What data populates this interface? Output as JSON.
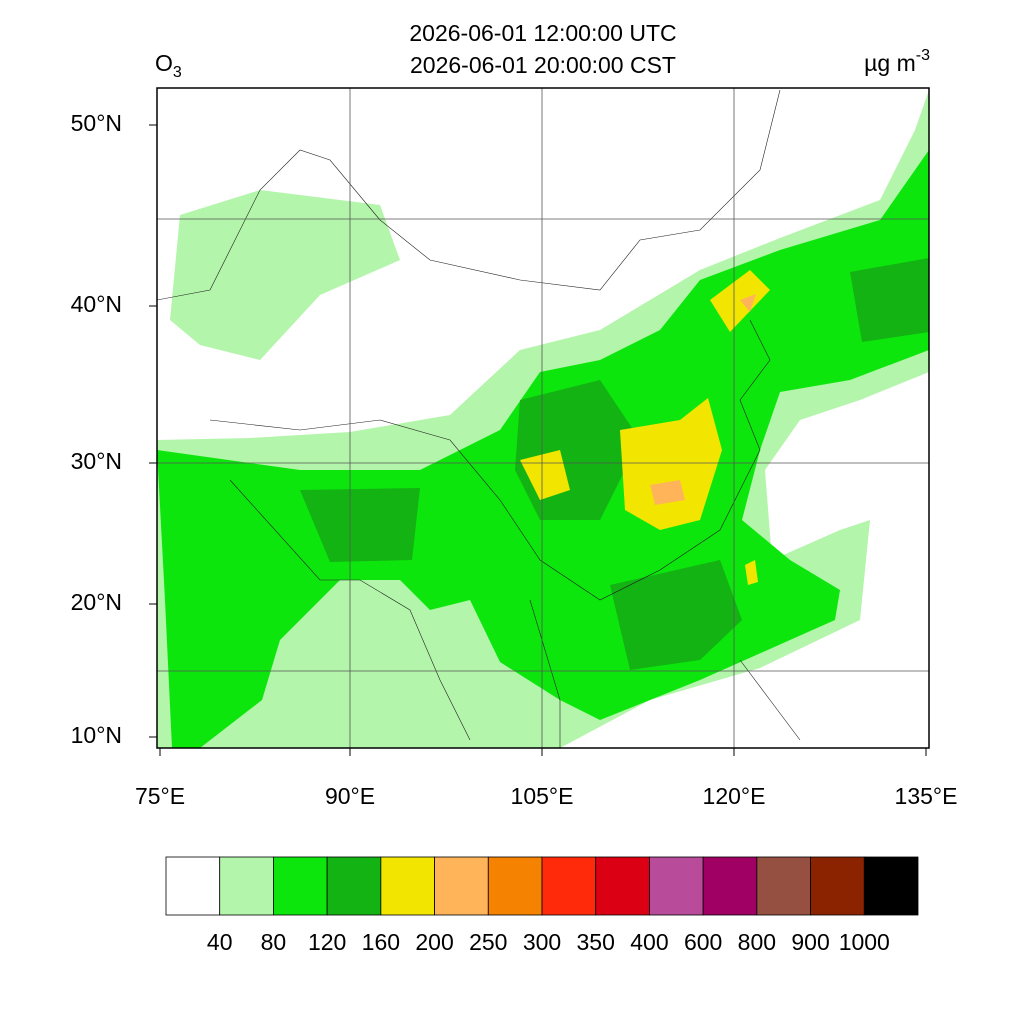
{
  "header": {
    "title_lines": [
      "2026-06-01 12:00:00 UTC",
      "2026-06-01 20:00:00 CST"
    ],
    "variable": {
      "text": "O",
      "subscript": "3"
    },
    "unit": {
      "text": "µg m",
      "superscript": "-3"
    }
  },
  "map": {
    "lat_labels": [
      "50°N",
      "40°N",
      "30°N",
      "20°N",
      "10°N"
    ],
    "lon_labels": [
      "75°E",
      "90°E",
      "105°E",
      "120°E",
      "135°E"
    ]
  },
  "legend": {
    "colors": [
      "#ffffff",
      "#b3f5aa",
      "#0ce60c",
      "#12b312",
      "#f2e600",
      "#ffb45a",
      "#f58200",
      "#ff2a0a",
      "#dc0014",
      "#b94b9b",
      "#a00064",
      "#965041",
      "#8c2300",
      "#000000"
    ],
    "labels": [
      40,
      80,
      120,
      160,
      200,
      250,
      300,
      350,
      400,
      600,
      800,
      900,
      1000
    ]
  }
}
